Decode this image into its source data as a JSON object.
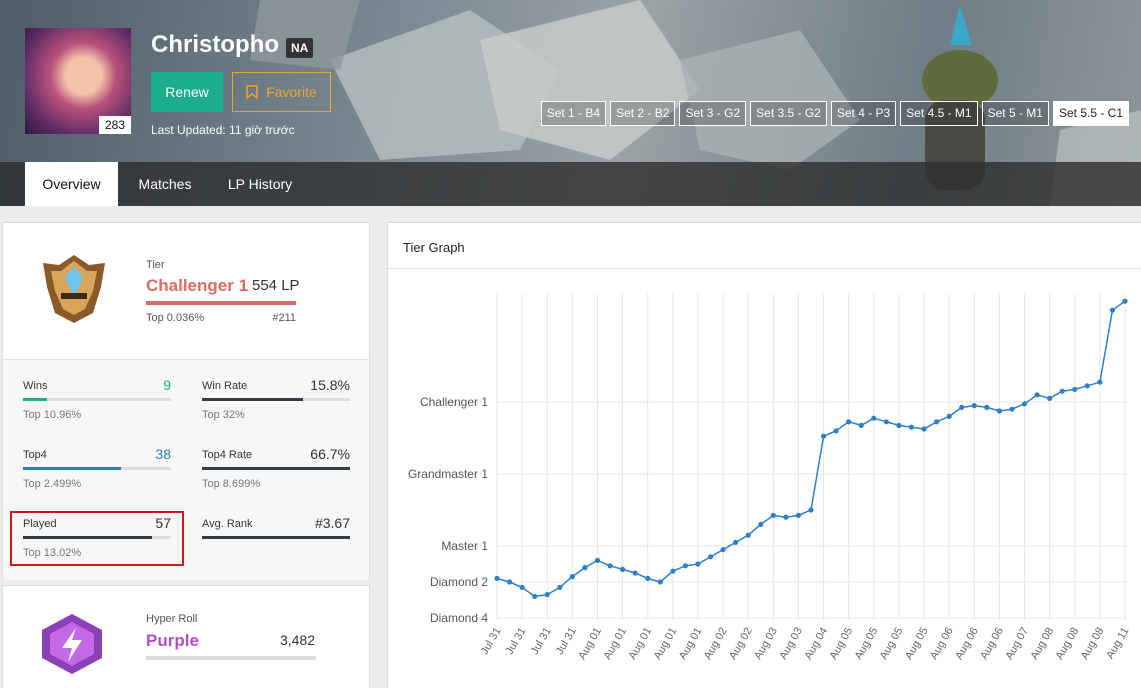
{
  "profile": {
    "name": "Christopho",
    "region": "NA",
    "level": "283",
    "last_updated": "Last Updated: 11 giờ trước"
  },
  "buttons": {
    "renew": "Renew",
    "favorite": "Favorite"
  },
  "sets": [
    "Set 1 - B4",
    "Set 2 - B2",
    "Set 3 - G2",
    "Set 3.5 - G2",
    "Set 4 - P3",
    "Set 4.5 - M1",
    "Set 5 - M1",
    "Set 5.5 - C1"
  ],
  "tabs": [
    "Overview",
    "Matches",
    "LP History"
  ],
  "tier": {
    "label": "Tier",
    "rank": "Challenger 1",
    "lp": "554 LP",
    "top": "Top 0.036%",
    "position": "#211"
  },
  "stats": [
    {
      "label": "Wins",
      "value": "9",
      "top": "Top 10.96%"
    },
    {
      "label": "Win Rate",
      "value": "15.8%",
      "top": "Top 32%"
    },
    {
      "label": "Top4",
      "value": "38",
      "top": "Top 2.499%"
    },
    {
      "label": "Top4 Rate",
      "value": "66.7%",
      "top": "Top 8.699%"
    },
    {
      "label": "Played",
      "value": "57",
      "top": "Top 13.02%"
    },
    {
      "label": "Avg. Rank",
      "value": "#3.67"
    }
  ],
  "hyper_roll": {
    "label": "Hyper Roll",
    "rank": "Purple",
    "rating": "3,482"
  },
  "tier_graph": {
    "title": "Tier Graph"
  },
  "chart_data": {
    "type": "line",
    "color": "#2f7fc8",
    "categories": [
      "Jul 31",
      null,
      "Jul 31",
      null,
      "Jul 31",
      null,
      "Jul 31",
      null,
      "Aug 01",
      null,
      "Aug 01",
      null,
      "Aug 01",
      null,
      "Aug 01",
      null,
      "Aug 01",
      null,
      "Aug 02",
      null,
      "Aug 02",
      null,
      "Aug 03",
      null,
      "Aug 03",
      null,
      "Aug 04",
      null,
      "Aug 05",
      null,
      "Aug 05",
      null,
      "Aug 05",
      null,
      "Aug 05",
      null,
      "Aug 06",
      null,
      "Aug 06",
      null,
      "Aug 06",
      null,
      "Aug 07",
      null,
      "Aug 08",
      null,
      "Aug 08",
      null,
      "Aug 08",
      null,
      "Aug 11"
    ],
    "values": [
      220,
      200,
      170,
      120,
      130,
      170,
      230,
      280,
      320,
      290,
      270,
      250,
      220,
      200,
      260,
      290,
      300,
      340,
      380,
      420,
      460,
      520,
      570,
      560,
      570,
      600,
      1010,
      1040,
      1090,
      1070,
      1110,
      1090,
      1070,
      1060,
      1050,
      1090,
      1120,
      1170,
      1180,
      1170,
      1150,
      1160,
      1190,
      1240,
      1220,
      1260,
      1270,
      1290,
      1310,
      1710,
      1760
    ],
    "ylim": [
      0,
      1800
    ],
    "yticks": [
      {
        "value": 0,
        "label": "Diamond 4"
      },
      {
        "value": 200,
        "label": "Diamond 2"
      },
      {
        "value": 400,
        "label": "Master 1"
      },
      {
        "value": 800,
        "label": "Grandmaster 1"
      },
      {
        "value": 1200,
        "label": "Challenger 1"
      }
    ],
    "grid": true
  }
}
